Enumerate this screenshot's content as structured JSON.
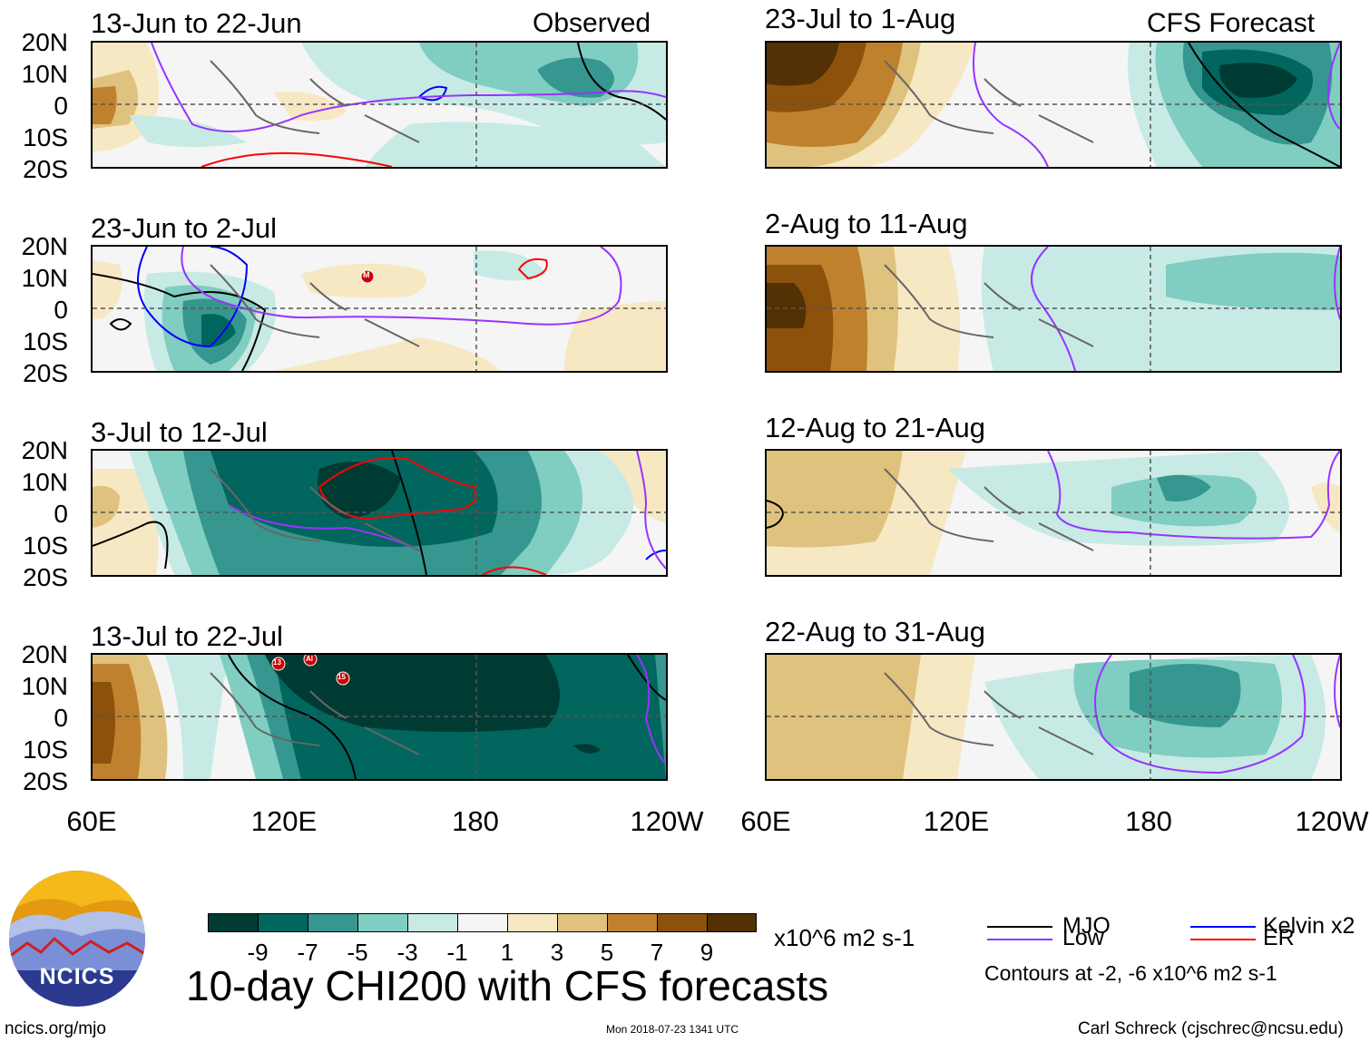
{
  "chart_data": {
    "type": "heatmap",
    "title": "10-day CHI200 with CFS forecasts",
    "variable": "CHI200",
    "units": "x10^6 m2 s-1",
    "lat_ticks": [
      "20N",
      "10N",
      "0",
      "10S",
      "20S"
    ],
    "lon_ticks": [
      "60E",
      "120E",
      "180",
      "120W"
    ],
    "lon_range": [
      "60E",
      "120W"
    ],
    "lat_range": [
      "20S",
      "20N"
    ],
    "observed_label": "Observed",
    "forecast_label": "CFS Forecast",
    "observed_periods": [
      "13-Jun to 22-Jun",
      "23-Jun to 2-Jul",
      "3-Jul to 12-Jul",
      "13-Jul to 22-Jul"
    ],
    "forecast_periods": [
      "23-Jul to 1-Aug",
      "2-Aug to 11-Aug",
      "12-Aug to 21-Aug",
      "22-Aug to 31-Aug"
    ],
    "colorbar": {
      "labels": [
        "-9",
        "-7",
        "-5",
        "-3",
        "-1",
        "1",
        "3",
        "5",
        "7",
        "9"
      ],
      "colors": [
        "#003b33",
        "#01665e",
        "#35978f",
        "#80cdc1",
        "#c7eae5",
        "#f5f5f5",
        "#f6e8c3",
        "#dfc27d",
        "#bf812d",
        "#8c510a",
        "#543005"
      ]
    },
    "legend": {
      "items": [
        {
          "label": "MJO",
          "color": "#000000"
        },
        {
          "label": "Low",
          "color": "#9933ff"
        },
        {
          "label": "Kelvin x2",
          "color": "#0000ff"
        },
        {
          "label": "ER",
          "color": "#ff0000"
        }
      ],
      "contours_note": "Contours at -2, -6 x10^6 m2 s-1"
    },
    "storm_labels": [
      "M",
      "13",
      "Al",
      "15"
    ]
  },
  "footer": {
    "website": "ncics.org/mjo",
    "timestamp": "Mon 2018-07-23 1341 UTC",
    "author": "Carl Schreck (cjschrec@ncsu.edu)",
    "logo_text": "NCICS"
  }
}
